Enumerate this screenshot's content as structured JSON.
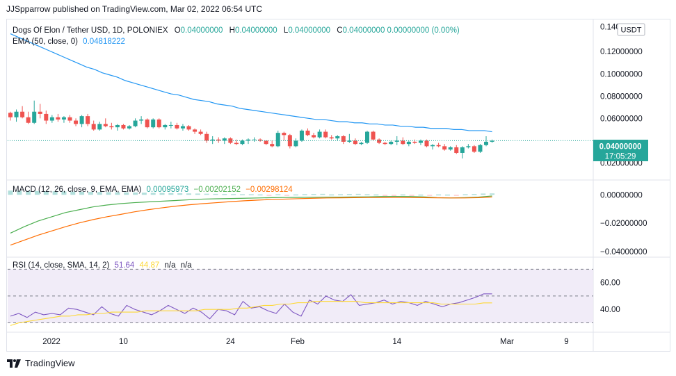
{
  "header": {
    "publisher": "JJSpparrow published on TradingView.com, Mar 02, 2022 06:54 UTC"
  },
  "legend": {
    "symbol": "Dogs Of Elon / Tether USD, 1D, POLONIEX",
    "o_label": "O",
    "o_value": "0.04000000",
    "h_label": "H",
    "h_value": "0.04000000",
    "l_label": "L",
    "l_value": "0.04000000",
    "c_label": "C",
    "c_value": "0.04000000 0.00000000 (0.00%)",
    "ema_label": "EMA (50, close, 0)",
    "ema_value": "0.04818222",
    "macd_label": "MACD (12, 26, close, 9, EMA, EMA)",
    "macd_v1": "0.00095973",
    "macd_v2": "−0.00202152",
    "macd_v3": "−0.00298124",
    "rsi_label": "RSI (14, close, SMA, 14, 2)",
    "rsi_v1": "51.64",
    "rsi_v2": "44.87",
    "rsi_v3": "n/a",
    "rsi_v4": "n/a"
  },
  "currency": "USDT",
  "price_tag": {
    "price": "0.04000000",
    "countdown": "17:05:29"
  },
  "footer": {
    "brand": "TradingView"
  },
  "colors": {
    "up": "#26a69a",
    "down": "#ef5350",
    "ema": "#2196f3",
    "macd": "#4caf50",
    "signal": "#ff6d00",
    "rsi": "#7e57c2",
    "rsi_ma": "#fdd835",
    "rsi_band": "#ede7f6"
  },
  "chart_data": [
    {
      "type": "candlestick",
      "title": "Dogs Of Elon / Tether USD, 1D, POLONIEX",
      "x_ticks": [
        "2022",
        "10",
        "24",
        "Feb",
        "14",
        "Mar",
        "9"
      ],
      "y_ticks": [
        "0.14000000",
        "0.12000000",
        "0.10000000",
        "0.08000000",
        "0.06000000",
        "0.04000000",
        "0.02000000"
      ],
      "ylim": [
        0.014,
        0.142
      ],
      "candles": [
        [
          0.065,
          0.066,
          0.058,
          0.061
        ],
        [
          0.061,
          0.068,
          0.057,
          0.066
        ],
        [
          0.066,
          0.071,
          0.06,
          0.061
        ],
        [
          0.061,
          0.066,
          0.055,
          0.056
        ],
        [
          0.056,
          0.076,
          0.055,
          0.066
        ],
        [
          0.066,
          0.073,
          0.06,
          0.064
        ],
        [
          0.064,
          0.067,
          0.055,
          0.058
        ],
        [
          0.058,
          0.063,
          0.056,
          0.061
        ],
        [
          0.061,
          0.064,
          0.057,
          0.059
        ],
        [
          0.059,
          0.062,
          0.056,
          0.061
        ],
        [
          0.061,
          0.063,
          0.056,
          0.058
        ],
        [
          0.058,
          0.06,
          0.053,
          0.055
        ],
        [
          0.055,
          0.063,
          0.052,
          0.062
        ],
        [
          0.062,
          0.064,
          0.053,
          0.055
        ],
        [
          0.055,
          0.058,
          0.049,
          0.05
        ],
        [
          0.05,
          0.057,
          0.049,
          0.055
        ],
        [
          0.055,
          0.06,
          0.052,
          0.053
        ],
        [
          0.053,
          0.056,
          0.05,
          0.052
        ],
        [
          0.052,
          0.055,
          0.049,
          0.054
        ],
        [
          0.054,
          0.055,
          0.05,
          0.051
        ],
        [
          0.051,
          0.054,
          0.05,
          0.053
        ],
        [
          0.053,
          0.06,
          0.052,
          0.058
        ],
        [
          0.058,
          0.062,
          0.055,
          0.059
        ],
        [
          0.059,
          0.06,
          0.051,
          0.052
        ],
        [
          0.052,
          0.06,
          0.051,
          0.059
        ],
        [
          0.059,
          0.06,
          0.051,
          0.052
        ],
        [
          0.052,
          0.055,
          0.05,
          0.054
        ],
        [
          0.054,
          0.057,
          0.051,
          0.054
        ],
        [
          0.054,
          0.056,
          0.05,
          0.051
        ],
        [
          0.051,
          0.055,
          0.049,
          0.053
        ],
        [
          0.053,
          0.054,
          0.049,
          0.05
        ],
        [
          0.05,
          0.051,
          0.046,
          0.048
        ],
        [
          0.048,
          0.05,
          0.045,
          0.046
        ],
        [
          0.046,
          0.048,
          0.038,
          0.04
        ],
        [
          0.04,
          0.044,
          0.037,
          0.041
        ],
        [
          0.041,
          0.043,
          0.038,
          0.04
        ],
        [
          0.04,
          0.043,
          0.037,
          0.042
        ],
        [
          0.042,
          0.043,
          0.037,
          0.038
        ],
        [
          0.038,
          0.041,
          0.036,
          0.037
        ],
        [
          0.037,
          0.041,
          0.036,
          0.04
        ],
        [
          0.04,
          0.042,
          0.037,
          0.041
        ],
        [
          0.041,
          0.043,
          0.039,
          0.041
        ],
        [
          0.041,
          0.042,
          0.039,
          0.04
        ],
        [
          0.04,
          0.04,
          0.036,
          0.037
        ],
        [
          0.037,
          0.04,
          0.034,
          0.035
        ],
        [
          0.035,
          0.049,
          0.034,
          0.047
        ],
        [
          0.047,
          0.048,
          0.04,
          0.045
        ],
        [
          0.045,
          0.046,
          0.033,
          0.035
        ],
        [
          0.035,
          0.042,
          0.034,
          0.04
        ],
        [
          0.04,
          0.05,
          0.039,
          0.049
        ],
        [
          0.049,
          0.051,
          0.044,
          0.045
        ],
        [
          0.045,
          0.047,
          0.042,
          0.043
        ],
        [
          0.043,
          0.05,
          0.042,
          0.048
        ],
        [
          0.048,
          0.05,
          0.042,
          0.043
        ],
        [
          0.043,
          0.045,
          0.041,
          0.042
        ],
        [
          0.042,
          0.045,
          0.04,
          0.044
        ],
        [
          0.044,
          0.045,
          0.037,
          0.039
        ],
        [
          0.039,
          0.046,
          0.038,
          0.04
        ],
        [
          0.04,
          0.042,
          0.036,
          0.037
        ],
        [
          0.037,
          0.039,
          0.036,
          0.038
        ],
        [
          0.038,
          0.049,
          0.037,
          0.048
        ],
        [
          0.048,
          0.049,
          0.04,
          0.041
        ],
        [
          0.041,
          0.042,
          0.037,
          0.038
        ],
        [
          0.038,
          0.039,
          0.036,
          0.037
        ],
        [
          0.037,
          0.04,
          0.036,
          0.039
        ],
        [
          0.039,
          0.044,
          0.036,
          0.04
        ],
        [
          0.04,
          0.043,
          0.036,
          0.037
        ],
        [
          0.037,
          0.04,
          0.035,
          0.039
        ],
        [
          0.039,
          0.041,
          0.037,
          0.038
        ],
        [
          0.038,
          0.041,
          0.036,
          0.04
        ],
        [
          0.04,
          0.041,
          0.034,
          0.035
        ],
        [
          0.035,
          0.037,
          0.032,
          0.036
        ],
        [
          0.036,
          0.038,
          0.034,
          0.035
        ],
        [
          0.035,
          0.037,
          0.031,
          0.032
        ],
        [
          0.032,
          0.035,
          0.031,
          0.034
        ],
        [
          0.034,
          0.036,
          0.028,
          0.029
        ],
        [
          0.029,
          0.035,
          0.024,
          0.034
        ],
        [
          0.034,
          0.037,
          0.033,
          0.035
        ],
        [
          0.035,
          0.036,
          0.029,
          0.03
        ],
        [
          0.03,
          0.037,
          0.029,
          0.036
        ],
        [
          0.036,
          0.044,
          0.035,
          0.039
        ],
        [
          0.039,
          0.041,
          0.038,
          0.04
        ]
      ],
      "ema": [
        0.136,
        0.133,
        0.13,
        0.127,
        0.124,
        0.121,
        0.118,
        0.115,
        0.112,
        0.109,
        0.106,
        0.104,
        0.101,
        0.099,
        0.097,
        0.094,
        0.092,
        0.09,
        0.088,
        0.086,
        0.084,
        0.082,
        0.081,
        0.079,
        0.077,
        0.076,
        0.075,
        0.073,
        0.072,
        0.071,
        0.069,
        0.068,
        0.067,
        0.066,
        0.065,
        0.064,
        0.063,
        0.062,
        0.061,
        0.06,
        0.059,
        0.059,
        0.058,
        0.057,
        0.057,
        0.056,
        0.056,
        0.055,
        0.055,
        0.054,
        0.054,
        0.053,
        0.053,
        0.052,
        0.052,
        0.051,
        0.051,
        0.051,
        0.05,
        0.05,
        0.049,
        0.049,
        0.049,
        0.048
      ],
      "last_price": 0.04
    },
    {
      "type": "line",
      "title": "MACD (12, 26, close, 9, EMA, EMA)",
      "y_ticks": [
        "0.00000000",
        "−0.02000000",
        "−0.04000000"
      ],
      "ylim": [
        -0.042,
        0.008
      ],
      "series": [
        {
          "name": "MACD",
          "values": [
            -0.027,
            -0.0225,
            -0.0185,
            -0.0155,
            -0.0125,
            -0.0105,
            -0.0085,
            -0.0072,
            -0.0062,
            -0.0055,
            -0.005,
            -0.0045,
            -0.004,
            -0.0035,
            -0.003,
            -0.0028,
            -0.0026,
            -0.0024,
            -0.0022,
            -0.002,
            -0.0019,
            -0.0018,
            -0.0017,
            -0.0016,
            -0.0016,
            -0.0015,
            -0.0014,
            -0.0012,
            -0.0011,
            -0.0012,
            -0.0014,
            -0.002,
            -0.0022,
            -0.002,
            -0.0016,
            -0.0008
          ]
        },
        {
          "name": "Signal",
          "values": [
            -0.0355,
            -0.032,
            -0.0285,
            -0.0255,
            -0.0225,
            -0.0198,
            -0.0175,
            -0.0155,
            -0.0138,
            -0.012,
            -0.0105,
            -0.0092,
            -0.008,
            -0.007,
            -0.0062,
            -0.0055,
            -0.0048,
            -0.0042,
            -0.0037,
            -0.0033,
            -0.003,
            -0.0027,
            -0.0024,
            -0.0022,
            -0.0021,
            -0.002,
            -0.0019,
            -0.0019,
            -0.0019,
            -0.0019,
            -0.002,
            -0.0021,
            -0.0022,
            -0.0022,
            -0.002,
            -0.0015
          ]
        },
        {
          "name": "Histogram",
          "values": [
            0.003,
            0.0029,
            0.0028,
            0.0027,
            0.0026,
            0.0025,
            0.0024,
            0.0023,
            0.0022,
            0.0021,
            0.002,
            0.0019,
            0.0018,
            0.0017,
            0.0016,
            0.0015,
            0.0014,
            0.0013,
            0.0012,
            0.0011,
            0.001,
            0.0009,
            0.0008,
            0.0007,
            0.0006,
            0.0005,
            0.0004,
            0.0004,
            0.0003,
            -0.0002,
            0.0004,
            -0.0004,
            0.0003,
            0.0005,
            0.0006,
            0.0007,
            0.0003,
            0.0004,
            0.0006,
            0.0007,
            0.0004,
            0.0003,
            -0.0003,
            -0.0002,
            0.0003,
            -0.0004,
            0.0002,
            -0.0003,
            0.0003,
            0.0002,
            -0.0002,
            0.0004,
            0.0006,
            0.0009,
            0.001
          ]
        }
      ]
    },
    {
      "type": "line",
      "title": "RSI (14, close, SMA, 14, 2)",
      "y_ticks": [
        "60.00",
        "40.00"
      ],
      "ylim": [
        23,
        79
      ],
      "bands": [
        70,
        50,
        30
      ],
      "series": [
        {
          "name": "RSI",
          "values": [
            35,
            37,
            34,
            38,
            36,
            37,
            36,
            41,
            40,
            38,
            36,
            42,
            37,
            35,
            43,
            40,
            38,
            36,
            39,
            43,
            40,
            37,
            41,
            38,
            33,
            40,
            39,
            36,
            46,
            41,
            42,
            39,
            37,
            44,
            38,
            35,
            47,
            44,
            50,
            47,
            46,
            51,
            43,
            44,
            45,
            47,
            44,
            46,
            45,
            43,
            46,
            44,
            42,
            44,
            45,
            47,
            49,
            51.64,
            51.64
          ]
        },
        {
          "name": "RSI-based MA",
          "values": [
            28,
            30,
            31,
            32,
            33,
            34,
            35,
            35,
            36,
            36,
            37,
            37,
            38,
            38,
            38,
            38,
            39,
            39,
            39,
            39,
            39,
            39,
            39,
            40,
            40,
            40,
            40,
            41,
            41,
            42,
            43,
            43,
            44,
            44,
            45,
            45,
            46,
            46,
            46,
            46,
            46,
            46,
            45,
            45,
            45,
            45,
            45,
            45,
            45,
            45,
            45,
            44,
            44,
            44,
            44,
            44,
            44.87,
            44.87
          ]
        }
      ]
    }
  ]
}
